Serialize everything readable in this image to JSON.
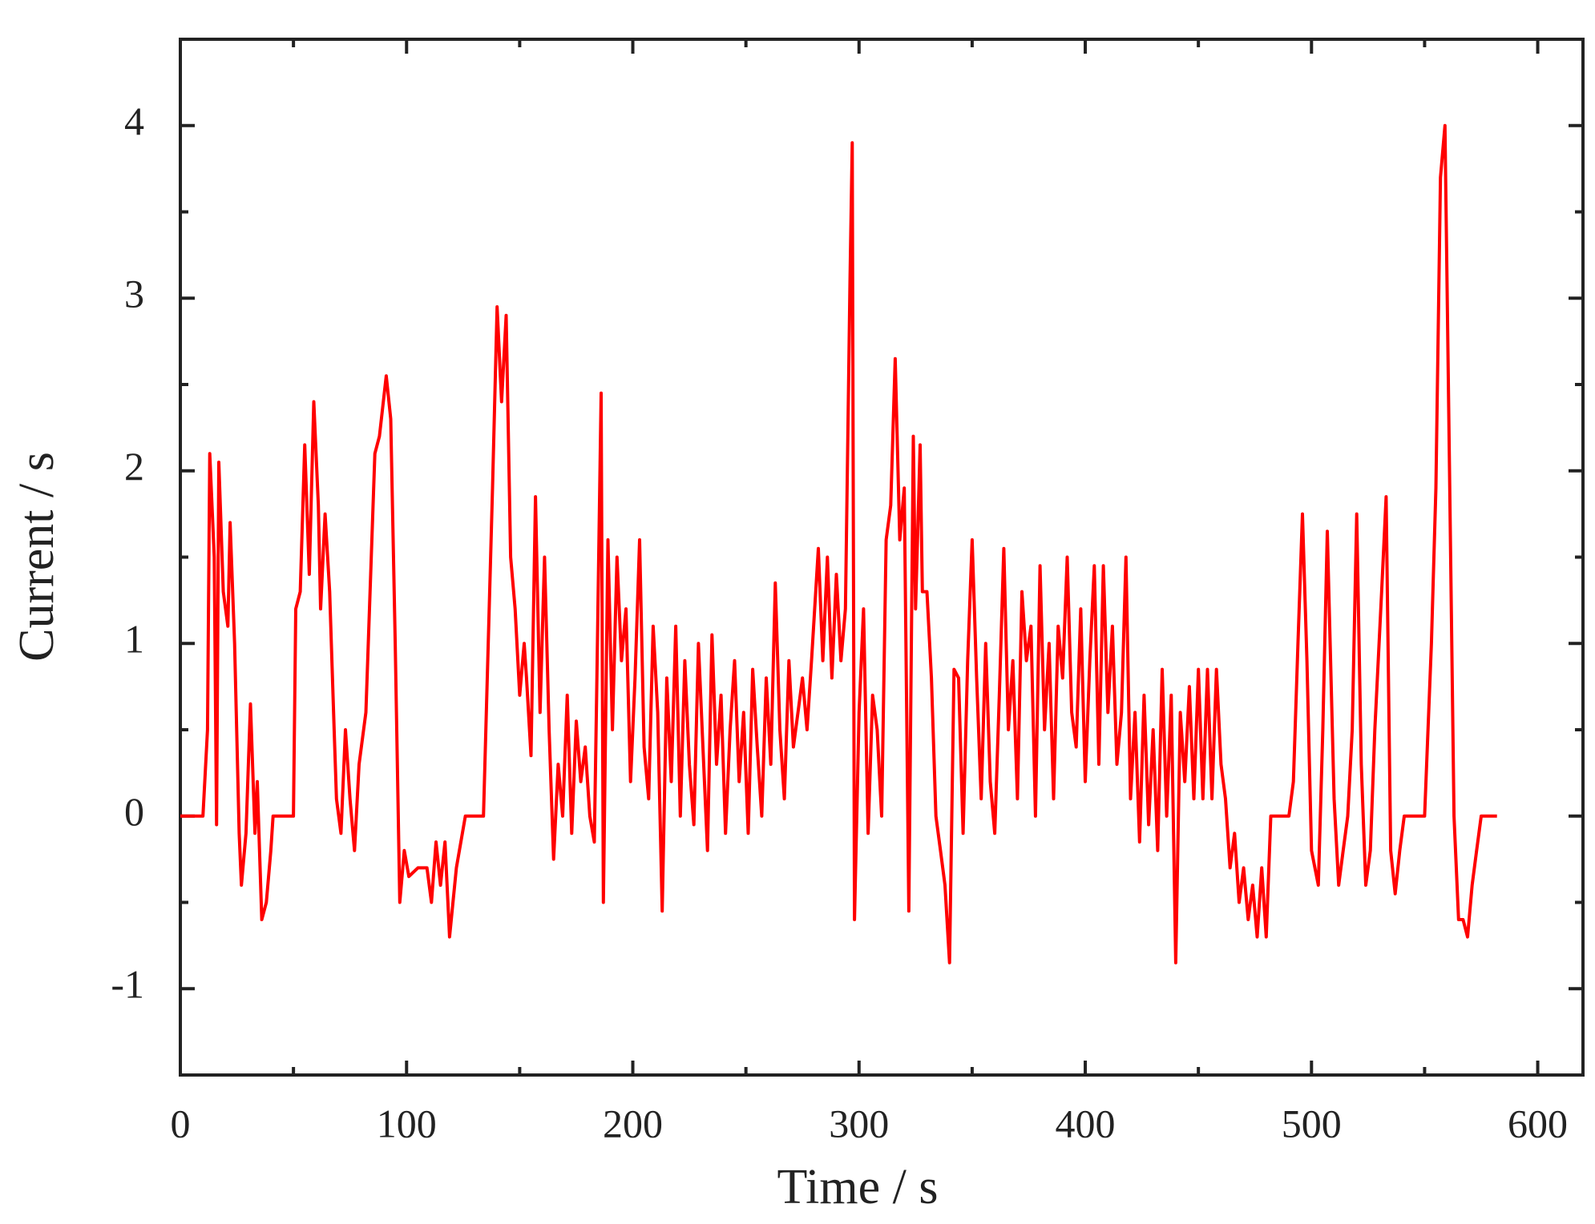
{
  "chart_data": {
    "type": "line",
    "xlabel": "Time / s",
    "ylabel": "Current / s",
    "color": "#ff0000",
    "xlim": [
      0,
      620
    ],
    "ylim": [
      -1.5,
      4.5
    ],
    "xticks": [
      0,
      100,
      200,
      300,
      400,
      500,
      600
    ],
    "xminorticks": [
      50,
      150,
      250,
      350,
      450,
      550
    ],
    "yticks": [
      -1,
      0,
      1,
      2,
      3,
      4
    ],
    "yminorticks": [
      -0.5,
      0.5,
      1.5,
      2.5,
      3.5
    ],
    "grid": false,
    "x": [
      0,
      5,
      10,
      12,
      13,
      15,
      16,
      17,
      19,
      21,
      22,
      24,
      26,
      27,
      29,
      31,
      33,
      34,
      36,
      38,
      40,
      41,
      50,
      51,
      53,
      55,
      57,
      59,
      61,
      62,
      64,
      66,
      68,
      69,
      71,
      73,
      75,
      77,
      79,
      82,
      86,
      88,
      91,
      93,
      95,
      97,
      99,
      101,
      105,
      109,
      111,
      113,
      115,
      117,
      119,
      122,
      126,
      134,
      138,
      140,
      142,
      144,
      146,
      148,
      150,
      152,
      153,
      155,
      157,
      159,
      161,
      163,
      165,
      167,
      169,
      171,
      173,
      175,
      177,
      179,
      181,
      183,
      184,
      186,
      187,
      189,
      191,
      193,
      195,
      197,
      199,
      201,
      203,
      205,
      207,
      209,
      211,
      213,
      215,
      217,
      219,
      221,
      223,
      225,
      227,
      229,
      231,
      233,
      235,
      237,
      239,
      241,
      243,
      245,
      247,
      249,
      251,
      253,
      255,
      257,
      259,
      261,
      263,
      265,
      267,
      269,
      271,
      273,
      275,
      277,
      279,
      282,
      284,
      286,
      288,
      290,
      292,
      294,
      296,
      297,
      298,
      300,
      302,
      304,
      306,
      308,
      310,
      312,
      314,
      316,
      318,
      320,
      322,
      324,
      325,
      327,
      328,
      330,
      332,
      334,
      336,
      338,
      340,
      342,
      344,
      346,
      348,
      350,
      352,
      354,
      356,
      358,
      360,
      362,
      364,
      366,
      368,
      370,
      372,
      374,
      376,
      378,
      380,
      382,
      384,
      386,
      388,
      390,
      392,
      394,
      396,
      398,
      400,
      402,
      404,
      406,
      408,
      410,
      412,
      414,
      416,
      418,
      420,
      422,
      424,
      426,
      428,
      430,
      432,
      434,
      436,
      438,
      440,
      442,
      444,
      446,
      448,
      450,
      452,
      454,
      456,
      458,
      460,
      462,
      464,
      466,
      468,
      470,
      472,
      474,
      476,
      478,
      480,
      482,
      490,
      492,
      494,
      496,
      498,
      500,
      503,
      505,
      507,
      510,
      512,
      514,
      516,
      518,
      520,
      522,
      524,
      526,
      528,
      531,
      533,
      535,
      537,
      539,
      541,
      550,
      553,
      555,
      557,
      559,
      561,
      563,
      565,
      567,
      569,
      571,
      573,
      575,
      582
    ],
    "values": [
      0,
      0,
      0,
      0.5,
      2.1,
      1.5,
      -0.05,
      2.05,
      1.3,
      1.1,
      1.7,
      1.0,
      -0.1,
      -0.4,
      -0.1,
      0.65,
      -0.1,
      0.2,
      -0.6,
      -0.5,
      -0.2,
      0,
      0,
      1.2,
      1.3,
      2.15,
      1.4,
      2.4,
      1.8,
      1.2,
      1.75,
      1.3,
      0.5,
      0.1,
      -0.1,
      0.5,
      0.1,
      -0.2,
      0.3,
      0.6,
      2.1,
      2.2,
      2.55,
      2.3,
      1.0,
      -0.5,
      -0.2,
      -0.35,
      -0.3,
      -0.3,
      -0.5,
      -0.15,
      -0.4,
      -0.15,
      -0.7,
      -0.3,
      0,
      0,
      1.9,
      2.95,
      2.4,
      2.9,
      1.5,
      1.2,
      0.7,
      1.0,
      0.8,
      0.35,
      1.85,
      0.6,
      1.5,
      0.5,
      -0.25,
      0.3,
      0.0,
      0.7,
      -0.1,
      0.55,
      0.2,
      0.4,
      0.0,
      -0.15,
      0.7,
      2.45,
      -0.5,
      1.6,
      0.5,
      1.5,
      0.9,
      1.2,
      0.2,
      0.8,
      1.6,
      0.4,
      0.1,
      1.1,
      0.6,
      -0.55,
      0.8,
      0.2,
      1.1,
      0.0,
      0.9,
      0.3,
      -0.05,
      1.0,
      0.4,
      -0.2,
      1.05,
      0.3,
      0.7,
      -0.1,
      0.5,
      0.9,
      0.2,
      0.6,
      -0.1,
      0.85,
      0.4,
      0.0,
      0.8,
      0.3,
      1.35,
      0.5,
      0.1,
      0.9,
      0.4,
      0.6,
      0.8,
      0.5,
      0.9,
      1.55,
      0.9,
      1.5,
      0.8,
      1.4,
      0.9,
      1.2,
      3.1,
      3.9,
      -0.6,
      0.6,
      1.2,
      -0.1,
      0.7,
      0.5,
      0.0,
      1.6,
      1.8,
      2.65,
      1.6,
      1.9,
      -0.55,
      2.2,
      1.2,
      2.15,
      1.3,
      1.3,
      0.8,
      0.0,
      -0.2,
      -0.4,
      -0.85,
      0.85,
      0.8,
      -0.1,
      0.9,
      1.6,
      0.8,
      0.1,
      1.0,
      0.2,
      -0.1,
      0.7,
      1.55,
      0.5,
      0.9,
      0.1,
      1.3,
      0.9,
      1.1,
      0.0,
      1.45,
      0.5,
      1.0,
      0.1,
      1.1,
      0.8,
      1.5,
      0.6,
      0.4,
      1.2,
      0.2,
      0.9,
      1.45,
      0.3,
      1.45,
      0.6,
      1.1,
      0.3,
      0.6,
      1.5,
      0.1,
      0.6,
      -0.15,
      0.7,
      -0.05,
      0.5,
      -0.2,
      0.85,
      0.0,
      0.7,
      -0.85,
      0.6,
      0.2,
      0.75,
      0.1,
      0.85,
      0.1,
      0.85,
      0.1,
      0.85,
      0.3,
      0.1,
      -0.3,
      -0.1,
      -0.5,
      -0.3,
      -0.6,
      -0.4,
      -0.7,
      -0.3,
      -0.7,
      0,
      0,
      0.2,
      1.0,
      1.75,
      0.9,
      -0.2,
      -0.4,
      0.5,
      1.65,
      0.1,
      -0.4,
      -0.2,
      0,
      0.5,
      1.75,
      0.3,
      -0.4,
      -0.2,
      0.5,
      1.3,
      1.85,
      -0.2,
      -0.45,
      -0.2,
      0,
      0,
      1.0,
      1.9,
      3.7,
      4.0,
      2.0,
      0.0,
      -0.6,
      -0.6,
      -0.7,
      -0.4,
      -0.2,
      0,
      0
    ]
  }
}
